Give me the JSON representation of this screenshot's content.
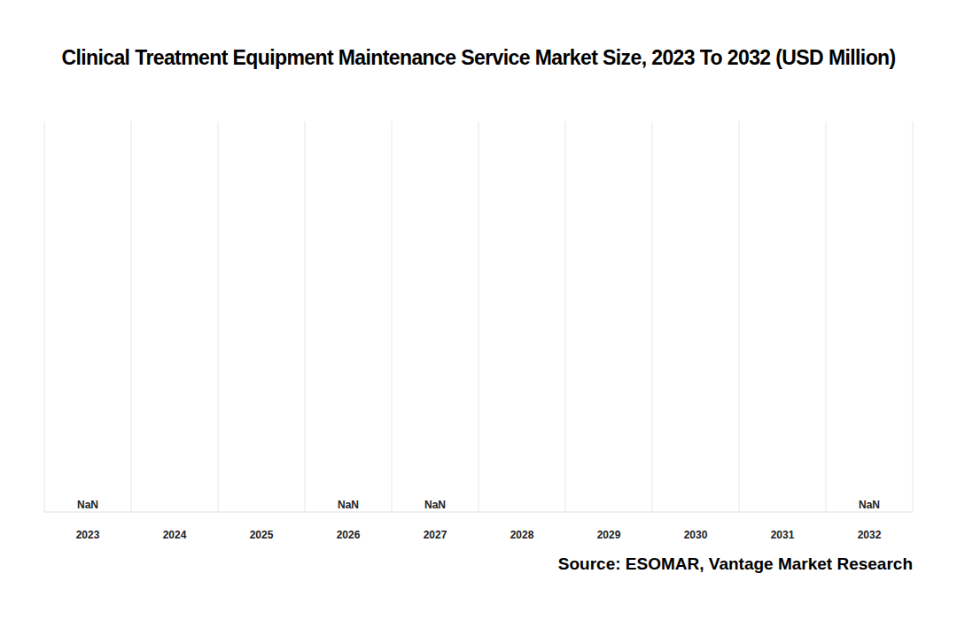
{
  "chart_data": {
    "type": "bar",
    "title": "Clinical Treatment Equipment Maintenance Service Market Size, 2023 To 2032 (USD Million)",
    "categories": [
      "2023",
      "2024",
      "2025",
      "2026",
      "2027",
      "2028",
      "2029",
      "2030",
      "2031",
      "2032"
    ],
    "values": [
      null,
      null,
      null,
      null,
      null,
      null,
      null,
      null,
      null,
      null
    ],
    "value_labels": [
      "NaN",
      null,
      null,
      "NaN",
      "NaN",
      null,
      null,
      null,
      null,
      "NaN"
    ],
    "data_labels": true,
    "grid": true,
    "tick_labels": "x",
    "source": "Source: ESOMAR, Vantage Market Research"
  }
}
